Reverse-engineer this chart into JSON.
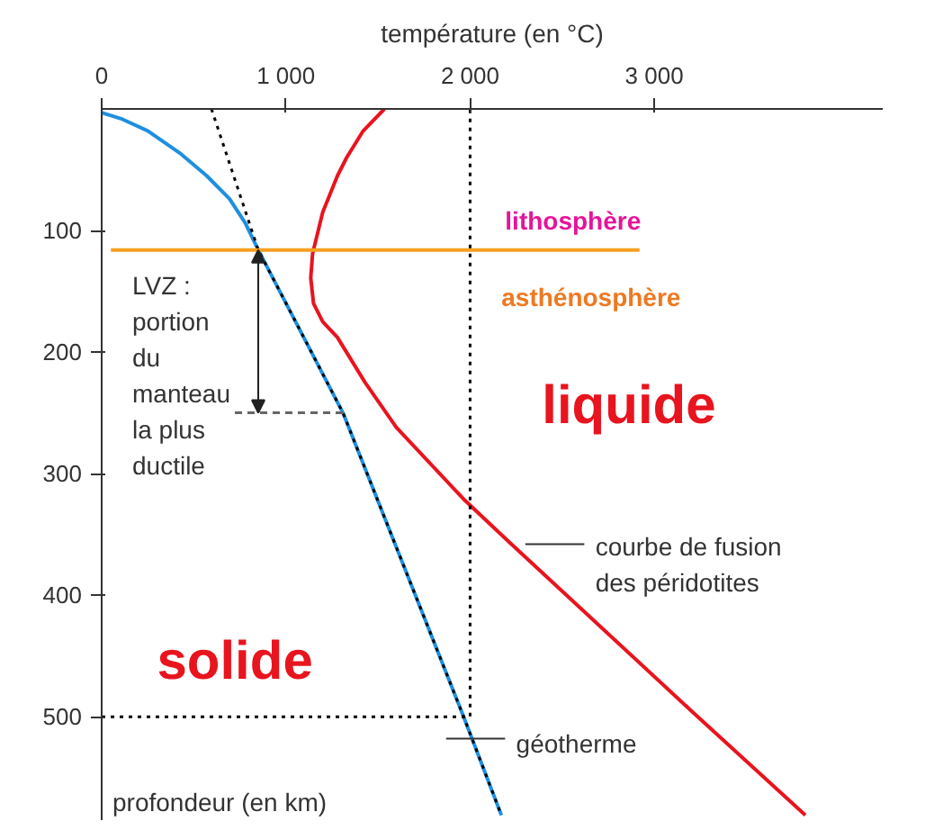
{
  "chart_data": {
    "type": "line",
    "xlabel": "température (en °C)",
    "ylabel": "profondeur (en km)",
    "xlim": [
      0,
      4240
    ],
    "ylim": [
      585,
      0
    ],
    "xticks": [
      0,
      {
        "value": 1000,
        "label": "1 000"
      },
      {
        "value": 2000,
        "label": "2 000"
      },
      {
        "value": 3000,
        "label": "3 000"
      }
    ],
    "yticks": [
      100,
      200,
      300,
      400,
      500
    ],
    "grid": false,
    "series": [
      {
        "color": "#1e8fe0",
        "x": [
          0,
          105,
          250,
          430,
          570,
          694,
          780,
          850,
          1310,
          1965,
          2170
        ],
        "values": [
          3,
          8,
          18,
          37,
          55,
          74,
          94,
          116,
          250,
          500,
          581
        ],
        "line_style": "solid"
      },
      {
        "color": "#000000",
        "x": [
          596,
          850,
          1310,
          1965,
          2170
        ],
        "values": [
          0,
          116,
          250,
          500,
          581
        ],
        "line_style": "dotted"
      },
      {
        "color": "#e8141e",
        "x": [
          1535,
          1420,
          1330,
          1280,
          1200,
          1145,
          1135,
          1150,
          1200,
          1280,
          1430,
          1600,
          1965,
          2210,
          3200,
          3820
        ],
        "values": [
          0,
          18,
          40,
          55,
          85,
          119,
          139,
          160,
          175,
          188,
          225,
          262,
          321,
          356,
          495,
          581
        ],
        "line_style": "solid"
      },
      {
        "color": "#f5a01e",
        "x": [
          50,
          2920
        ],
        "values": [
          116,
          116
        ],
        "line_style": "solid"
      },
      {
        "color": "#000000",
        "x": [
          0,
          2000,
          2000
        ],
        "values": [
          500,
          500,
          0
        ],
        "line_style": "dotted"
      },
      {
        "color": "#666666",
        "x": [
          723,
          1310
        ],
        "values": [
          250,
          250
        ],
        "line_style": "dashed"
      }
    ],
    "annotations": [
      "lithosphère",
      "asthénosphère",
      "liquide",
      "solide",
      {
        "text": "LVZ :\nportion\ndu\nmanteau\nla plus\nductile",
        "x": 850,
        "y": 116
      },
      "courbe de fusion\ndes péridotites",
      "géotherme"
    ]
  }
}
